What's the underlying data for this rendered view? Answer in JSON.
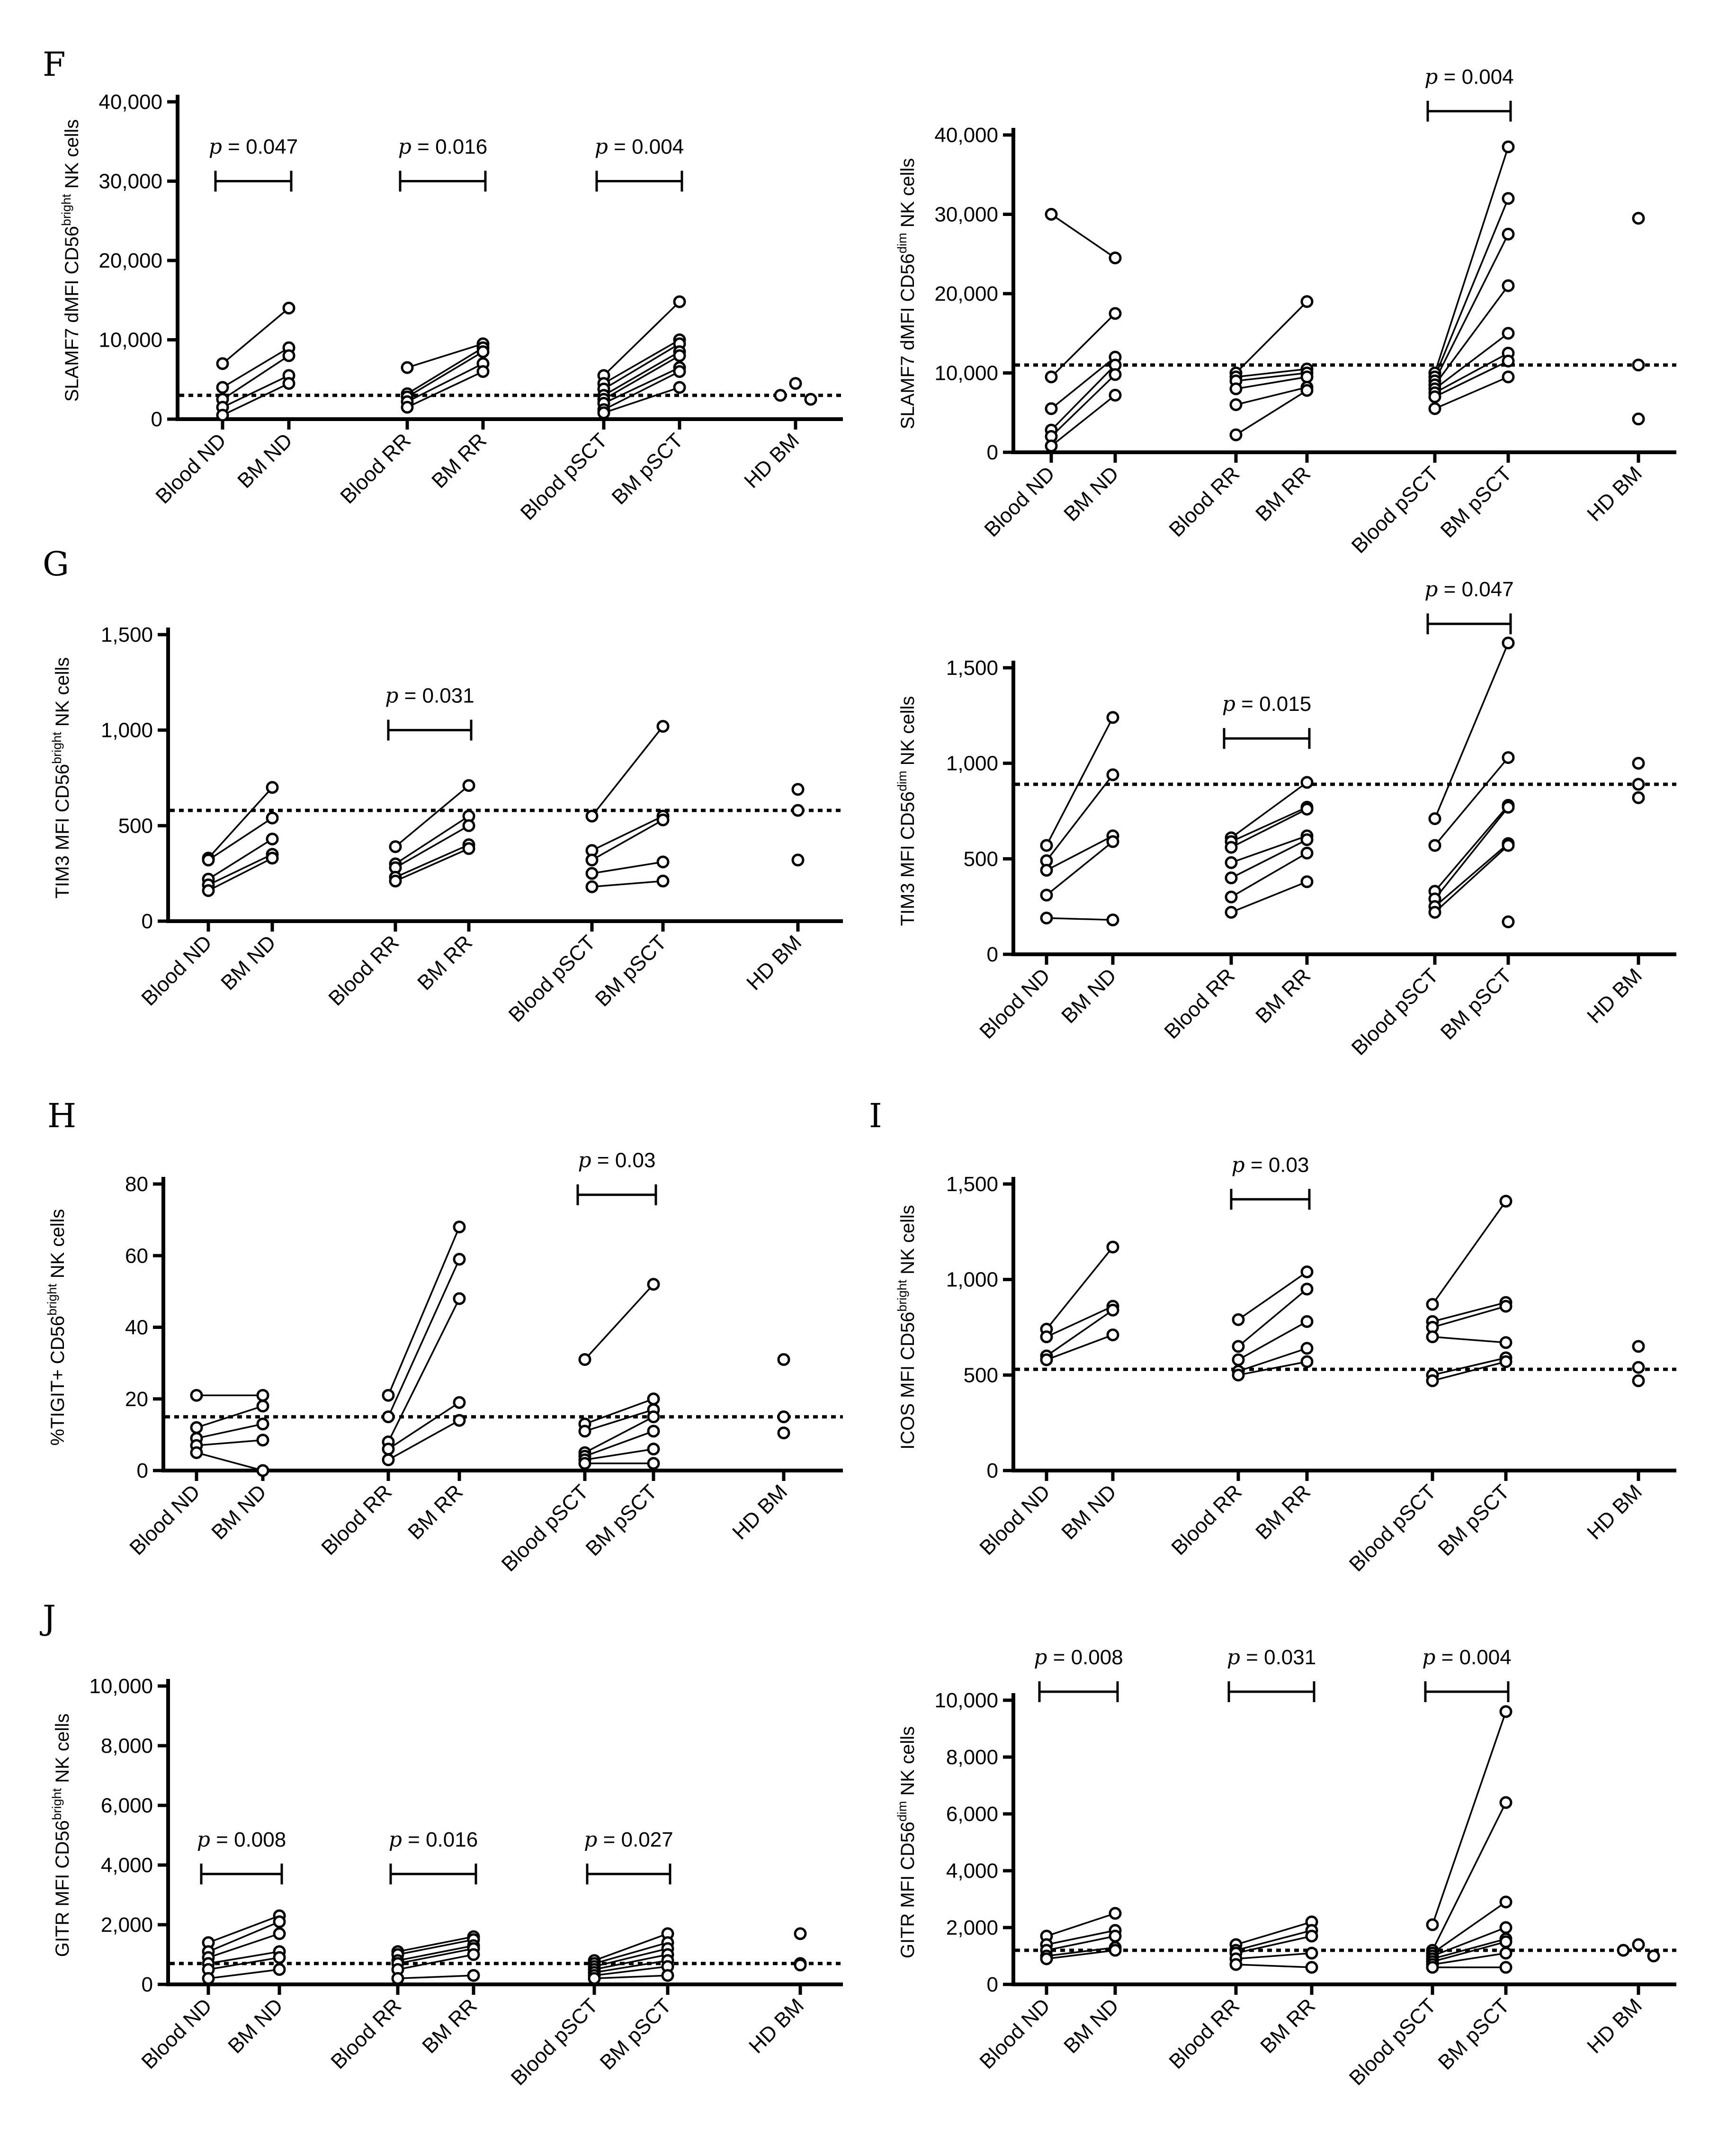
{
  "panel_letters": [
    "F",
    "G",
    "H",
    "I",
    "J"
  ],
  "chart_data": [
    {
      "id": "F-left",
      "type": "scatter",
      "panel_letter": "F",
      "ylabel": {
        "pre": "SLAMF7 dMFI CD56",
        "sup": "bright",
        "post": " NK cells"
      },
      "ylim": [
        0,
        40000
      ],
      "ytick_values": [
        0,
        10000,
        20000,
        30000,
        40000
      ],
      "ytick_labels": [
        "0",
        "10,000",
        "20,000",
        "30,000",
        "40,000"
      ],
      "categories": [
        "Blood ND",
        "BM ND",
        "Blood RR",
        "BM RR",
        "Blood pSCT",
        "BM pSCT",
        "HD BM"
      ],
      "reference_line": 3000,
      "pairs": [
        {
          "a": 0,
          "b": 1,
          "y1": [
            7000,
            4000,
            2500,
            1500,
            500
          ],
          "y2": [
            14000,
            9000,
            8000,
            5500,
            4500
          ]
        },
        {
          "a": 2,
          "b": 3,
          "y1": [
            6500,
            3200,
            2800,
            2200,
            1500
          ],
          "y2": [
            9500,
            9000,
            8500,
            7000,
            6000
          ]
        },
        {
          "a": 4,
          "b": 5,
          "y1": [
            5500,
            4500,
            3800,
            3000,
            2500,
            2000,
            1200,
            800
          ],
          "y2": [
            14800,
            10000,
            9500,
            8500,
            8000,
            6500,
            6000,
            4000
          ]
        }
      ],
      "singles": [
        {
          "cat": 6,
          "values": [
            4500,
            3000,
            2500
          ]
        }
      ],
      "p_values": [
        {
          "a": 0,
          "b": 1,
          "text": "= 0.047",
          "at": 30000
        },
        {
          "a": 2,
          "b": 3,
          "text": "= 0.016",
          "at": 30000
        },
        {
          "a": 4,
          "b": 5,
          "text": "= 0.004",
          "at": 30000
        }
      ]
    },
    {
      "id": "F-right",
      "type": "scatter",
      "ylabel": {
        "pre": "SLAMF7 dMFI CD56",
        "sup": "dim",
        "post": " NK cells"
      },
      "ylim": [
        0,
        40000
      ],
      "ytick_values": [
        0,
        10000,
        20000,
        30000,
        40000
      ],
      "ytick_labels": [
        "0",
        "10,000",
        "20,000",
        "30,000",
        "40,000"
      ],
      "categories": [
        "Blood ND",
        "BM ND",
        "Blood RR",
        "BM RR",
        "Blood pSCT",
        "BM pSCT",
        "HD BM"
      ],
      "reference_line": 11000,
      "pairs": [
        {
          "a": 0,
          "b": 1,
          "y1": [
            30000,
            9500,
            5500,
            2800,
            2000,
            800
          ],
          "y2": [
            24500,
            17500,
            12000,
            11000,
            9800,
            7200
          ]
        },
        {
          "a": 2,
          "b": 3,
          "y1": [
            10000,
            9500,
            9000,
            8000,
            6000,
            2200
          ],
          "y2": [
            19000,
            10500,
            10000,
            9500,
            8200,
            7800
          ]
        },
        {
          "a": 4,
          "b": 5,
          "y1": [
            10000,
            9500,
            9000,
            8500,
            8000,
            7500,
            7000,
            5500
          ],
          "y2": [
            38500,
            32000,
            27500,
            21000,
            15000,
            12500,
            11500,
            9500
          ]
        }
      ],
      "singles": [
        {
          "cat": 6,
          "values": [
            29500,
            11000,
            4200
          ]
        }
      ],
      "p_values": [
        {
          "a": 4,
          "b": 5,
          "text": "= 0.004",
          "at": 43000
        }
      ]
    },
    {
      "id": "G-left",
      "type": "scatter",
      "panel_letter": "G",
      "ylabel": {
        "pre": "TIM3 MFI CD56",
        "sup": "bright",
        "post": " NK cells"
      },
      "ylim": [
        0,
        1500
      ],
      "ytick_values": [
        0,
        500,
        1000,
        1500
      ],
      "ytick_labels": [
        "0",
        "500",
        "1,000",
        "1,500"
      ],
      "categories": [
        "Blood ND",
        "BM ND",
        "Blood RR",
        "BM RR",
        "Blood pSCT",
        "BM pSCT",
        "HD BM"
      ],
      "reference_line": 580,
      "pairs": [
        {
          "a": 0,
          "b": 1,
          "y1": [
            330,
            320,
            220,
            190,
            160
          ],
          "y2": [
            700,
            540,
            430,
            350,
            330
          ]
        },
        {
          "a": 2,
          "b": 3,
          "y1": [
            390,
            300,
            280,
            230,
            210
          ],
          "y2": [
            710,
            550,
            500,
            400,
            380
          ]
        },
        {
          "a": 4,
          "b": 5,
          "y1": [
            550,
            370,
            320,
            250,
            180
          ],
          "y2": [
            1020,
            550,
            530,
            310,
            210
          ]
        }
      ],
      "singles": [
        {
          "cat": 6,
          "values": [
            690,
            580,
            320
          ]
        }
      ],
      "p_values": [
        {
          "a": 2,
          "b": 3,
          "text": "= 0.031",
          "at": 1000
        }
      ]
    },
    {
      "id": "G-right",
      "type": "scatter",
      "ylabel": {
        "pre": "TIM3 MFI CD56",
        "sup": "dim",
        "post": " NK cells"
      },
      "ylim": [
        0,
        1500
      ],
      "ytick_values": [
        0,
        500,
        1000,
        1500
      ],
      "ytick_labels": [
        "0",
        "500",
        "1,000",
        "1,500"
      ],
      "categories": [
        "Blood ND",
        "BM ND",
        "Blood RR",
        "BM RR",
        "Blood pSCT",
        "BM pSCT",
        "HD BM"
      ],
      "reference_line": 890,
      "pairs": [
        {
          "a": 0,
          "b": 1,
          "y1": [
            570,
            490,
            440,
            310,
            190
          ],
          "y2": [
            1240,
            940,
            620,
            590,
            180
          ]
        },
        {
          "a": 2,
          "b": 3,
          "y1": [
            610,
            590,
            560,
            480,
            400,
            300,
            220
          ],
          "y2": [
            900,
            770,
            760,
            620,
            600,
            530,
            380
          ]
        },
        {
          "a": 4,
          "b": 5,
          "y1": [
            710,
            570,
            330,
            290,
            250,
            220
          ],
          "y2": [
            1630,
            1030,
            780,
            770,
            580,
            570,
            170
          ]
        }
      ],
      "singles": [
        {
          "cat": 6,
          "values": [
            1000,
            890,
            820
          ]
        }
      ],
      "p_values": [
        {
          "a": 2,
          "b": 3,
          "text": "= 0.015",
          "at": 1130
        },
        {
          "a": 4,
          "b": 5,
          "text": "= 0.047",
          "at": 1730
        }
      ]
    },
    {
      "id": "H-left",
      "type": "scatter",
      "panel_letter": "H",
      "ylabel": {
        "pre": "%TIGIT+ CD56",
        "sup": "bright",
        "post": " NK cells"
      },
      "ylim": [
        0,
        80
      ],
      "ytick_values": [
        0,
        20,
        40,
        60,
        80
      ],
      "ytick_labels": [
        "0",
        "20",
        "40",
        "60",
        "80"
      ],
      "categories": [
        "Blood ND",
        "BM ND",
        "Blood RR",
        "BM RR",
        "Blood pSCT",
        "BM pSCT",
        "HD BM"
      ],
      "reference_line": 15,
      "pairs": [
        {
          "a": 0,
          "b": 1,
          "y1": [
            21,
            12,
            9,
            7,
            5
          ],
          "y2": [
            21,
            18,
            13,
            8.5,
            0
          ]
        },
        {
          "a": 2,
          "b": 3,
          "y1": [
            21,
            15,
            8,
            6,
            3
          ],
          "y2": [
            68,
            59,
            48,
            19,
            14
          ]
        },
        {
          "a": 4,
          "b": 5,
          "y1": [
            31,
            13,
            11,
            5,
            4,
            3,
            2
          ],
          "y2": [
            52,
            20,
            17,
            15,
            11,
            6,
            2
          ]
        }
      ],
      "singles": [
        {
          "cat": 6,
          "values": [
            31,
            15,
            10.5
          ]
        }
      ],
      "p_values": [
        {
          "a": 4,
          "b": 5,
          "text": "= 0.03",
          "at": 77
        }
      ]
    },
    {
      "id": "I-right",
      "type": "scatter",
      "panel_letter": "I",
      "ylabel": {
        "pre": "ICOS MFI CD56",
        "sup": "bright",
        "post": " NK cells"
      },
      "ylim": [
        0,
        1500
      ],
      "ytick_values": [
        0,
        500,
        1000,
        1500
      ],
      "ytick_labels": [
        "0",
        "500",
        "1,000",
        "1,500"
      ],
      "categories": [
        "Blood ND",
        "BM ND",
        "Blood RR",
        "BM RR",
        "Blood pSCT",
        "BM pSCT",
        "HD BM"
      ],
      "reference_line": 530,
      "pairs": [
        {
          "a": 0,
          "b": 1,
          "y1": [
            740,
            700,
            600,
            580
          ],
          "y2": [
            1170,
            860,
            840,
            710
          ]
        },
        {
          "a": 2,
          "b": 3,
          "y1": [
            790,
            650,
            580,
            520,
            500
          ],
          "y2": [
            1040,
            950,
            780,
            640,
            570
          ]
        },
        {
          "a": 4,
          "b": 5,
          "y1": [
            870,
            780,
            750,
            700,
            500,
            470
          ],
          "y2": [
            1410,
            880,
            860,
            670,
            590,
            570
          ]
        }
      ],
      "singles": [
        {
          "cat": 6,
          "values": [
            650,
            540,
            470
          ]
        }
      ],
      "p_values": [
        {
          "a": 2,
          "b": 3,
          "text": "= 0.03",
          "at": 1420
        }
      ]
    },
    {
      "id": "J-left",
      "type": "scatter",
      "panel_letter": "J",
      "ylabel": {
        "pre": "GITR MFI CD56",
        "sup": "bright",
        "post": " NK cells"
      },
      "ylim": [
        0,
        10000
      ],
      "ytick_values": [
        0,
        2000,
        4000,
        6000,
        8000,
        10000
      ],
      "ytick_labels": [
        "0",
        "2,000",
        "4,000",
        "6,000",
        "8,000",
        "10,000"
      ],
      "categories": [
        "Blood ND",
        "BM ND",
        "Blood RR",
        "BM RR",
        "Blood pSCT",
        "BM pSCT",
        "HD BM"
      ],
      "reference_line": 700,
      "pairs": [
        {
          "a": 0,
          "b": 1,
          "y1": [
            1400,
            1100,
            900,
            700,
            500,
            200
          ],
          "y2": [
            2300,
            2100,
            1700,
            1100,
            900,
            500
          ]
        },
        {
          "a": 2,
          "b": 3,
          "y1": [
            1100,
            1000,
            800,
            700,
            500,
            200
          ],
          "y2": [
            1600,
            1500,
            1300,
            1200,
            1000,
            300
          ]
        },
        {
          "a": 4,
          "b": 5,
          "y1": [
            800,
            700,
            600,
            500,
            400,
            300,
            200
          ],
          "y2": [
            1700,
            1400,
            1200,
            1000,
            800,
            600,
            300
          ]
        }
      ],
      "singles": [
        {
          "cat": 6,
          "values": [
            1700,
            700,
            650
          ]
        }
      ],
      "p_values": [
        {
          "a": 0,
          "b": 1,
          "text": "= 0.008",
          "at": 3700
        },
        {
          "a": 2,
          "b": 3,
          "text": "= 0.016",
          "at": 3700
        },
        {
          "a": 4,
          "b": 5,
          "text": "= 0.027",
          "at": 3700
        }
      ]
    },
    {
      "id": "J-right",
      "type": "scatter",
      "ylabel": {
        "pre": "GITR MFI CD56",
        "sup": "dim",
        "post": " NK cells"
      },
      "ylim": [
        0,
        10000
      ],
      "ytick_values": [
        0,
        2000,
        4000,
        6000,
        8000,
        10000
      ],
      "ytick_labels": [
        "0",
        "2,000",
        "4,000",
        "6,000",
        "8,000",
        "10,000"
      ],
      "categories": [
        "Blood ND",
        "BM ND",
        "Blood RR",
        "BM RR",
        "Blood pSCT",
        "BM pSCT",
        "HD BM"
      ],
      "reference_line": 1200,
      "pairs": [
        {
          "a": 0,
          "b": 1,
          "y1": [
            1700,
            1400,
            1200,
            1000,
            900
          ],
          "y2": [
            2500,
            1900,
            1700,
            1300,
            1200
          ]
        },
        {
          "a": 2,
          "b": 3,
          "y1": [
            1400,
            1200,
            1100,
            900,
            700
          ],
          "y2": [
            2200,
            1900,
            1700,
            1100,
            600
          ]
        },
        {
          "a": 4,
          "b": 5,
          "y1": [
            2100,
            1200,
            1100,
            1000,
            900,
            800,
            700,
            600
          ],
          "y2": [
            9600,
            6400,
            2900,
            2000,
            1600,
            1500,
            1100,
            600
          ]
        }
      ],
      "singles": [
        {
          "cat": 6,
          "values": [
            1400,
            1200,
            1000
          ]
        }
      ],
      "p_values": [
        {
          "a": 0,
          "b": 1,
          "text": "= 0.008",
          "at": 10300
        },
        {
          "a": 2,
          "b": 3,
          "text": "= 0.031",
          "at": 10300
        },
        {
          "a": 4,
          "b": 5,
          "text": "= 0.004",
          "at": 10300
        }
      ]
    }
  ],
  "p_prefix": "p"
}
